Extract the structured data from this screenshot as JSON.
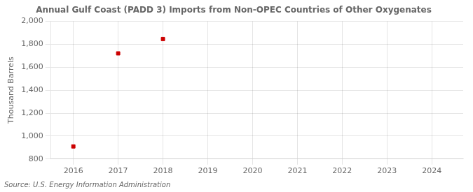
{
  "chart_data": {
    "type": "scatter",
    "title": "Annual Gulf Coast (PADD 3) Imports from Non-OPEC Countries of Other Oxygenates",
    "y_label": "Thousand Barrels",
    "annotations": [
      "Source: U.S. Energy Information Administration"
    ],
    "x": [
      2016,
      2017,
      2018
    ],
    "values": [
      910,
      1720,
      1845
    ],
    "color": "#cc0000",
    "marker": "square",
    "xlim": [
      2015.5,
      2024.7
    ],
    "ylim": [
      800,
      2000
    ],
    "xticks": [
      2016,
      2017,
      2018,
      2019,
      2020,
      2021,
      2022,
      2023,
      2024
    ],
    "yticks": [
      800,
      {
        "value": 1000,
        "label": "1,000"
      },
      {
        "value": 1200,
        "label": "1,200"
      },
      {
        "value": 1400,
        "label": "1,400"
      },
      {
        "value": 1600,
        "label": "1,600"
      },
      {
        "value": 1800,
        "label": "1,800"
      },
      {
        "value": 2000,
        "label": "2,000"
      }
    ],
    "grid": true
  }
}
